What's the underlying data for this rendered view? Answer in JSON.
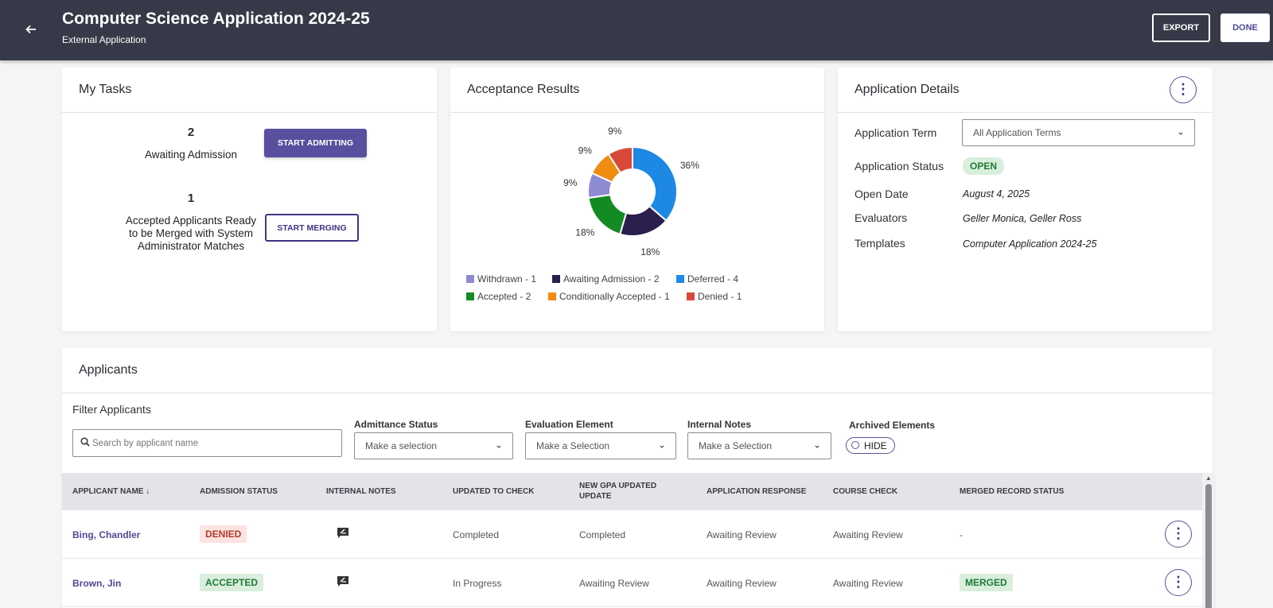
{
  "header": {
    "title": "Computer Science Application 2024-25",
    "subtitle": "External Application",
    "export_label": "EXPORT",
    "done_label": "DONE"
  },
  "tasks": {
    "title": "My Tasks",
    "items": [
      {
        "count": "2",
        "label": "Awaiting Admission",
        "button": "START ADMITTING"
      },
      {
        "count": "1",
        "label": "Accepted Applicants Ready to be Merged with System Administrator Matches",
        "button": "START MERGING"
      }
    ]
  },
  "acceptance": {
    "title": "Acceptance Results"
  },
  "chart_data": {
    "type": "pie",
    "donut": true,
    "categories": [
      "Deferred",
      "Awaiting Admission",
      "Accepted",
      "Withdrawn",
      "Conditionally Accepted",
      "Denied"
    ],
    "values": [
      4,
      2,
      2,
      1,
      1,
      1
    ],
    "percent_labels": [
      "36%",
      "18%",
      "18%",
      "9%",
      "9%",
      "9%"
    ],
    "colors": [
      "#1e88e5",
      "#2b1f4d",
      "#138a22",
      "#8f8bd3",
      "#f08c12",
      "#d9493b"
    ],
    "legend": [
      "Withdrawn - 1",
      "Awaiting Admission - 2",
      "Deferred - 4",
      "Accepted - 2",
      "Conditionally Accepted - 1",
      "Denied - 1"
    ],
    "legend_colors": [
      "#8f8bd3",
      "#2b1f4d",
      "#1e88e5",
      "#138a22",
      "#f08c12",
      "#d9493b"
    ],
    "legend_position": "bottom"
  },
  "details": {
    "title": "Application Details",
    "term_label": "Application Term",
    "term_value": "All Application Terms",
    "status_label": "Application Status",
    "status_value": "OPEN",
    "open_date_label": "Open Date",
    "open_date_value": "August 4, 2025",
    "evaluators_label": "Evaluators",
    "evaluators_value": "Geller Monica, Geller Ross",
    "templates_label": "Templates",
    "templates_value": "Computer Application 2024-25"
  },
  "applicants": {
    "title": "Applicants",
    "filter_title": "Filter Applicants",
    "search_placeholder": "Search by applicant name",
    "admittance_label": "Admittance Status",
    "admittance_value": "Make a selection",
    "evaluation_label": "Evaluation Element",
    "evaluation_value": "Make a Selection",
    "notes_label": "Internal Notes",
    "notes_value": "Make a Selection",
    "archived_label": "Archived Elements",
    "archived_toggle": "HIDE",
    "columns": [
      "APPLICANT NAME",
      "ADMISSION STATUS",
      "INTERNAL NOTES",
      "UPDATED TO CHECK",
      "NEW GPA UPDATED UPDATE",
      "APPLICATION RESPONSE",
      "COURSE CHECK",
      "MERGED RECORD STATUS"
    ],
    "sort_indicator": "↓",
    "rows": [
      {
        "name": "Bing, Chandler",
        "status": "DENIED",
        "updated": "Completed",
        "gpa": "Completed",
        "response": "Awaiting Review",
        "course": "Awaiting Review",
        "merged": "-"
      },
      {
        "name": "Brown, Jin",
        "status": "ACCEPTED",
        "updated": "In Progress",
        "gpa": "Awaiting Review",
        "response": "Awaiting Review",
        "course": "Awaiting Review",
        "merged": "MERGED"
      }
    ]
  },
  "colors": {
    "header_bg": "#363a48",
    "accent": "#584f9e",
    "denied_bg": "#fbe3e1",
    "denied_text": "#b8372c",
    "accepted_bg": "#d9eedd",
    "accepted_text": "#1e7a34"
  }
}
